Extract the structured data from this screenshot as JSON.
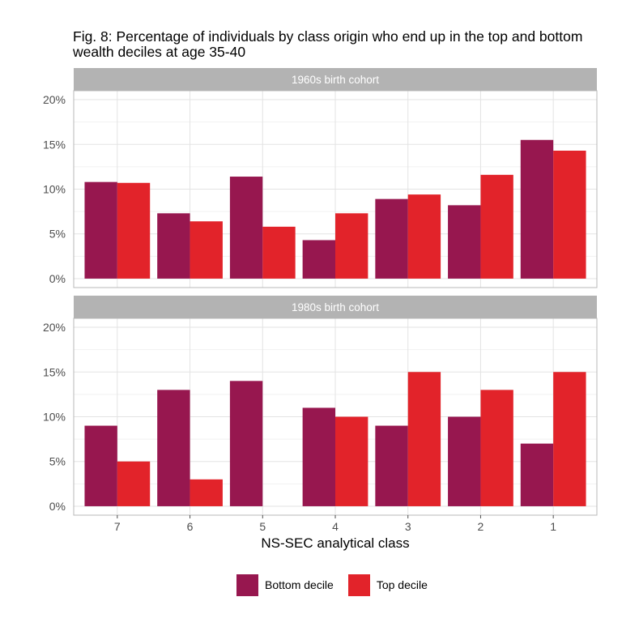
{
  "chart_data": {
    "type": "bar",
    "title": "Fig. 8: Percentage of individuals by class origin who end up in the top and bottom wealth deciles at age 35-40",
    "xlabel": "NS-SEC analytical class",
    "ylabel": "",
    "categories": [
      "7",
      "6",
      "5",
      "4",
      "3",
      "2",
      "1"
    ],
    "ylim": [
      0,
      20
    ],
    "y_ticks": [
      "0%",
      "5%",
      "10%",
      "15%",
      "20%"
    ],
    "grid": true,
    "legend_position": "bottom",
    "panels": [
      {
        "strip_label": "1960s birth cohort",
        "series": [
          {
            "name": "Bottom decile",
            "values": [
              10.8,
              7.3,
              11.4,
              4.3,
              8.9,
              8.2,
              15.5
            ]
          },
          {
            "name": "Top decile",
            "values": [
              10.7,
              6.4,
              5.8,
              7.3,
              9.4,
              11.6,
              14.3
            ]
          }
        ]
      },
      {
        "strip_label": "1980s birth cohort",
        "series": [
          {
            "name": "Bottom decile",
            "values": [
              9,
              13,
              14,
              11,
              9,
              10,
              7
            ]
          },
          {
            "name": "Top decile",
            "values": [
              5,
              3,
              0,
              10,
              15,
              13,
              15
            ]
          }
        ]
      }
    ],
    "colors": {
      "Bottom decile": "#97174f",
      "Top decile": "#e2232a",
      "strip": "#b3b3b3",
      "grid_major": "#e3e3e3",
      "grid_minor": "#f1f1f1",
      "panel_border": "#b8b8b8",
      "axis_text": "#4d4d4d"
    }
  }
}
